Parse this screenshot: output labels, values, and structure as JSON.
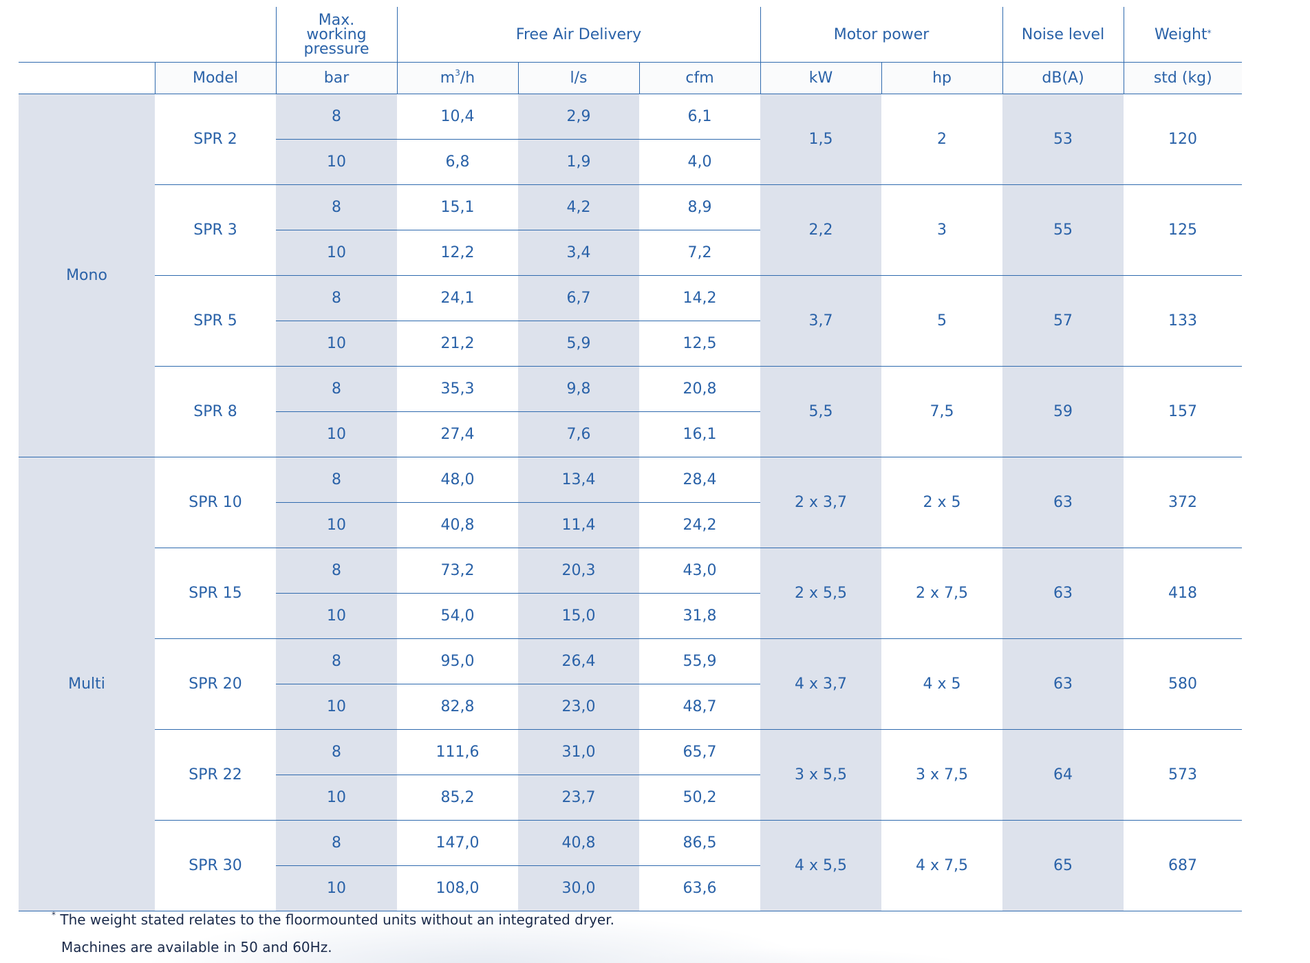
{
  "headers": {
    "pressure": "Max. working pressure",
    "pressure_lines": [
      "Max.",
      "working",
      "pressure"
    ],
    "fad": "Free Air Delivery",
    "motor": "Motor power",
    "noise": "Noise level",
    "weight": "Weight",
    "weight_mark": "*"
  },
  "units": {
    "model": "Model",
    "bar": "bar",
    "m3h_base": "m",
    "m3h_sup": "3",
    "m3h_rest": "/h",
    "ls": "l/s",
    "cfm": "cfm",
    "kw": "kW",
    "hp": "hp",
    "dba": "dB(A)",
    "kg": "std (kg)"
  },
  "groups": [
    {
      "name": "Mono",
      "models": [
        {
          "model": "SPR 2",
          "kw": "1,5",
          "hp": "2",
          "db": "53",
          "kg": "120",
          "rows": [
            {
              "bar": "8",
              "m3h": "10,4",
              "ls": "2,9",
              "cfm": "6,1"
            },
            {
              "bar": "10",
              "m3h": "6,8",
              "ls": "1,9",
              "cfm": "4,0"
            }
          ]
        },
        {
          "model": "SPR 3",
          "kw": "2,2",
          "hp": "3",
          "db": "55",
          "kg": "125",
          "rows": [
            {
              "bar": "8",
              "m3h": "15,1",
              "ls": "4,2",
              "cfm": "8,9"
            },
            {
              "bar": "10",
              "m3h": "12,2",
              "ls": "3,4",
              "cfm": "7,2"
            }
          ]
        },
        {
          "model": "SPR 5",
          "kw": "3,7",
          "hp": "5",
          "db": "57",
          "kg": "133",
          "rows": [
            {
              "bar": "8",
              "m3h": "24,1",
              "ls": "6,7",
              "cfm": "14,2"
            },
            {
              "bar": "10",
              "m3h": "21,2",
              "ls": "5,9",
              "cfm": "12,5"
            }
          ]
        },
        {
          "model": "SPR 8",
          "kw": "5,5",
          "hp": "7,5",
          "db": "59",
          "kg": "157",
          "rows": [
            {
              "bar": "8",
              "m3h": "35,3",
              "ls": "9,8",
              "cfm": "20,8"
            },
            {
              "bar": "10",
              "m3h": "27,4",
              "ls": "7,6",
              "cfm": "16,1"
            }
          ]
        }
      ]
    },
    {
      "name": "Multi",
      "models": [
        {
          "model": "SPR 10",
          "kw": "2 x 3,7",
          "hp": "2 x 5",
          "db": "63",
          "kg": "372",
          "rows": [
            {
              "bar": "8",
              "m3h": "48,0",
              "ls": "13,4",
              "cfm": "28,4"
            },
            {
              "bar": "10",
              "m3h": "40,8",
              "ls": "11,4",
              "cfm": "24,2"
            }
          ]
        },
        {
          "model": "SPR 15",
          "kw": "2 x 5,5",
          "hp": "2 x 7,5",
          "db": "63",
          "kg": "418",
          "rows": [
            {
              "bar": "8",
              "m3h": "73,2",
              "ls": "20,3",
              "cfm": "43,0"
            },
            {
              "bar": "10",
              "m3h": "54,0",
              "ls": "15,0",
              "cfm": "31,8"
            }
          ]
        },
        {
          "model": "SPR 20",
          "kw": "4 x 3,7",
          "hp": "4 x 5",
          "db": "63",
          "kg": "580",
          "rows": [
            {
              "bar": "8",
              "m3h": "95,0",
              "ls": "26,4",
              "cfm": "55,9"
            },
            {
              "bar": "10",
              "m3h": "82,8",
              "ls": "23,0",
              "cfm": "48,7"
            }
          ]
        },
        {
          "model": "SPR 22",
          "kw": "3 x 5,5",
          "hp": "3 x 7,5",
          "db": "64",
          "kg": "573",
          "rows": [
            {
              "bar": "8",
              "m3h": "111,6",
              "ls": "31,0",
              "cfm": "65,7"
            },
            {
              "bar": "10",
              "m3h": "85,2",
              "ls": "23,7",
              "cfm": "50,2"
            }
          ]
        },
        {
          "model": "SPR 30",
          "kw": "4 x 5,5",
          "hp": "4 x 7,5",
          "db": "65",
          "kg": "687",
          "rows": [
            {
              "bar": "8",
              "m3h": "147,0",
              "ls": "40,8",
              "cfm": "86,5"
            },
            {
              "bar": "10",
              "m3h": "108,0",
              "ls": "30,0",
              "cfm": "63,6"
            }
          ]
        }
      ]
    }
  ],
  "footnotes": {
    "mark": "*",
    "weight_note": "The weight stated relates to the floormounted units without an integrated dryer.",
    "frequency_note": "Machines are available in 50 and 60Hz."
  }
}
